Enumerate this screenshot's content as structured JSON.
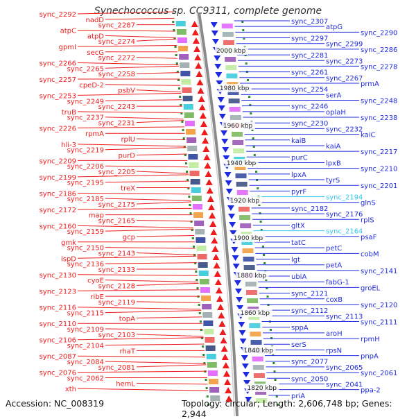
{
  "title": "Synechococcus sp. CC9311, complete genome",
  "accession": "Accession: NC_008319",
  "topology": "Topology: circular; Length: 2,606,748 bp; Genes: 2,944",
  "colors": {
    "left": "#ee1c1c",
    "right": "#1f2be0",
    "highlight": "#33c8ee",
    "ring_dots": "#2a8a2a",
    "backbone": "#8a8a8a"
  },
  "ticks": [
    "2000 kbp",
    "1980 kbp",
    "1960 kbp",
    "1940 kbp",
    "1920 kbp",
    "1900 kbp",
    "1880 kbp",
    "1860 kbp",
    "1840 kbp",
    "1820 kbp"
  ],
  "left_labels": [
    "sync_2292",
    "nadD",
    "sync_2287",
    "atpC",
    "atpD",
    "sync_2274",
    "gpmI",
    "secG",
    "sync_2272",
    "sync_2266",
    "sync_2265",
    "sync_2258",
    "sync_2257",
    "cpeD-2",
    "psbV",
    "sync_2253",
    "sync_2249",
    "sync_2243",
    "truB",
    "sync_2237",
    "sync_2231",
    "sync_2226",
    "rpmA",
    "rplU",
    "hli-3",
    "sync_2219",
    "purD",
    "sync_2209",
    "sync_2206",
    "sync_2205",
    "sync_2199",
    "sync_2195",
    "treX",
    "sync_2186",
    "sync_2185",
    "sync_2175",
    "sync_2172",
    "map",
    "sync_2165",
    "sync_2160",
    "sync_2159",
    "gcp",
    "gmk",
    "sync_2150",
    "sync_2143",
    "ispD",
    "sync_2136",
    "sync_2133",
    "sync_2130",
    "cyoE",
    "sync_2128",
    "sync_2123",
    "ribE",
    "sync_2119",
    "sync_2116",
    "sync_2115",
    "topA",
    "sync_2110",
    "sync_2109",
    "sync_2103",
    "sync_2106",
    "sync_2104",
    "rhaT",
    "sync_2087",
    "sync_2084",
    "sync_2081",
    "sync_2076",
    "sync_2062",
    "hemL",
    "xth"
  ],
  "right_labels": [
    "sync_2307",
    "atpG",
    "sync_2290",
    "sync_2297",
    "sync_2299",
    "sync_2286",
    "sync_2281",
    "sync_2273",
    "sync_2278",
    "sync_2261",
    "sync_2267",
    "prmA",
    "sync_2254",
    "serA",
    "sync_2248",
    "sync_2246",
    "oplaH",
    "sync_2238",
    "sync_2230",
    "sync_2232",
    "kaiC",
    "kaiB",
    "kaiA",
    "sync_2217",
    "purC",
    "lpxB",
    "sync_2210",
    "lpxA",
    "tyrS",
    "sync_2201",
    "pyrF",
    "sync_2194",
    "glnS",
    "sync_2182",
    "sync_2176",
    "rplS",
    "gltX",
    "sync_2164",
    "psaF",
    "tatC",
    "petC",
    "cobM",
    "lgt",
    "petA",
    "sync_2141",
    "ubiA",
    "fabG-1",
    "groEL",
    "sync_2121",
    "coxB",
    "sync_2120",
    "sync_2112",
    "sync_2113",
    "sync_2111",
    "sppA",
    "aroH",
    "rpmH",
    "serS",
    "rpsN",
    "pnpA",
    "sync_2077",
    "sync_2065",
    "sync_2061",
    "sync_2050",
    "sync_2041",
    "ppa-2",
    "priA"
  ]
}
